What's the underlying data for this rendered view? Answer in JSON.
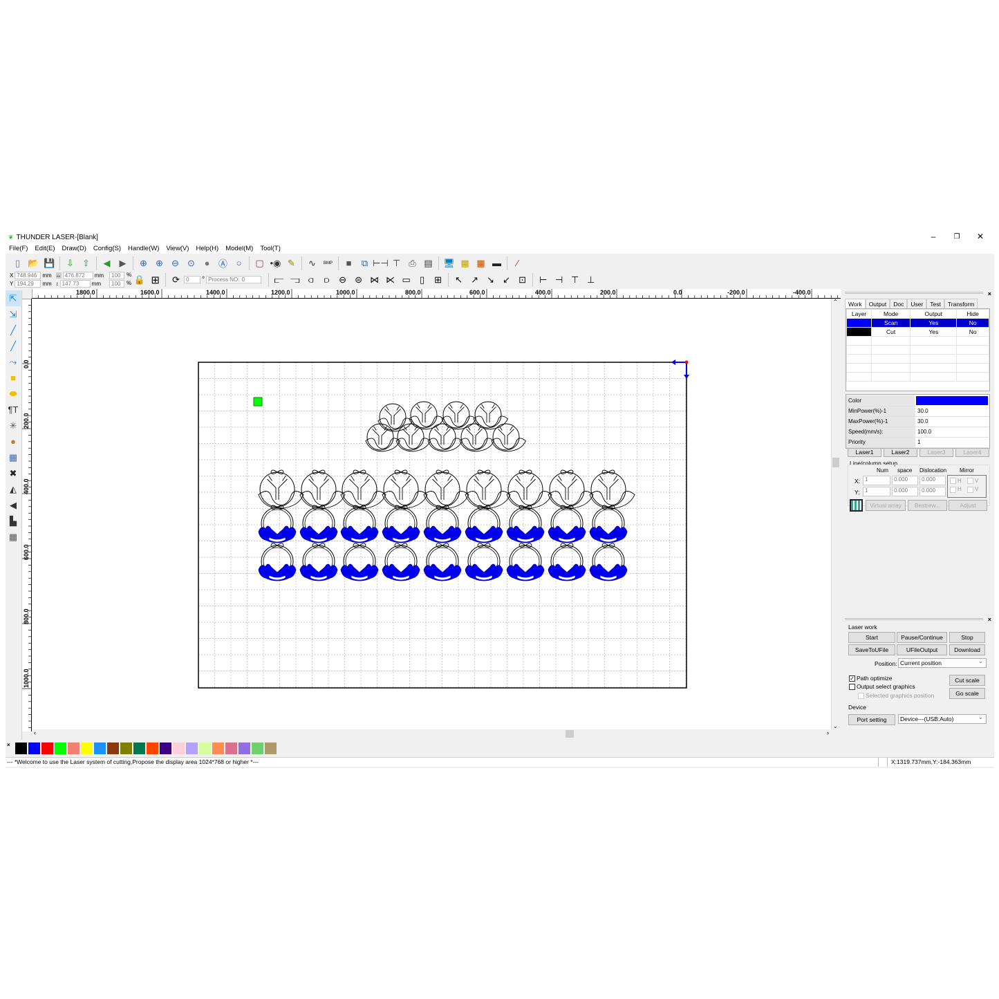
{
  "window": {
    "title": "THUNDER LASER-[Blank]",
    "minimize": "–",
    "restore": "❐",
    "close": "✕"
  },
  "menu": [
    "File(F)",
    "Edit(E)",
    "Draw(D)",
    "Config(S)",
    "Handle(W)",
    "View(V)",
    "Help(H)",
    "Model(M)",
    "Tool(T)"
  ],
  "toolbar1": [
    "new-file",
    "open-folder",
    "save",
    "import",
    "export",
    "undo",
    "redo",
    "zoom-in",
    "zoom-in-2",
    "zoom-out",
    "zoom-fit",
    "zoom-page",
    "zoom-select",
    "zoom-all",
    "rectangle",
    "node",
    "pen",
    "curve",
    "bmp",
    "square",
    "tree",
    "align-h",
    "align-v",
    "printer",
    "frame",
    "monitor",
    "laser-grid",
    "laser-grid-2",
    "camera",
    "magic-wand"
  ],
  "toolbar1_bmp": "BMP",
  "position": {
    "x_label": "X",
    "y_label": "Y",
    "x": "748.946",
    "y": "194.29",
    "unit": "mm",
    "width": "476.872",
    "height": "147.73",
    "scale_x": "100",
    "scale_y": "100",
    "pct": "%",
    "rotate": "0",
    "deg": "°",
    "process_label": "Process NO:",
    "process_no": "0"
  },
  "ruler_top": [
    "1800.0",
    "1600.0",
    "1400.0",
    "1200.0",
    "1000.0",
    "800.0",
    "600.0",
    "400.0",
    "200.0",
    "0.0",
    "-200.0",
    "-400.0"
  ],
  "ruler_left": [
    "0.0",
    "200.0",
    "400.0",
    "600.0",
    "800.0",
    "1000.0"
  ],
  "panel": {
    "tabs": [
      "Work",
      "Output",
      "Doc",
      "User",
      "Test",
      "Transform"
    ],
    "layer_headers": [
      "Layer",
      "Mode",
      "Output",
      "Hide"
    ],
    "layers": [
      {
        "color": "#0000ff",
        "mode": "Scan",
        "output": "Yes",
        "hide": "No",
        "selected": true
      },
      {
        "color": "#000000",
        "mode": "Cut",
        "output": "Yes",
        "hide": "No",
        "selected": false
      }
    ],
    "props": [
      {
        "k": "Color",
        "v": ""
      },
      {
        "k": "MinPower(%)-1",
        "v": "30.0"
      },
      {
        "k": "MaxPower(%)-1",
        "v": "30.0"
      },
      {
        "k": "Speed(mm/s):",
        "v": "100.0"
      },
      {
        "k": "Priority",
        "v": "1"
      }
    ],
    "prop_color": "#0000ff",
    "lasers": [
      "Laser1",
      "Laser2",
      "Laser3",
      "Laser4"
    ],
    "array": {
      "title": "Line/column setup",
      "num": "Num",
      "space": "space",
      "dislocation": "Dislocation",
      "mirror": "Mirror",
      "x": "X:",
      "y": "Y:",
      "x_num": "1",
      "y_num": "1",
      "x_space": "0.000",
      "y_space": "0.000",
      "x_dis": "0.000",
      "y_dis": "0.000",
      "h": "H",
      "v": "V",
      "virtual": "Virtual array",
      "bestrew": "Bestrew...",
      "adjust": "Adjust"
    },
    "laser_work": {
      "title": "Laser work",
      "start": "Start",
      "pause": "Pause/Continue",
      "stop": "Stop",
      "save": "SaveToUFile",
      "ufile": "UFileOutput",
      "download": "Download",
      "position_label": "Position:",
      "position": "Current position",
      "path_opt": "Path optimize",
      "output_sel": "Output select graphics",
      "sel_pos": "Selected graphics position",
      "cut_scale": "Cut scale",
      "go_scale": "Go scale"
    },
    "device": {
      "title": "Device",
      "port": "Port setting",
      "device": "Device---(USB:Auto)"
    }
  },
  "palette": [
    "#000000",
    "#0000ff",
    "#ff0000",
    "#00ff00",
    "#f08070",
    "#ffff00",
    "#1e90ff",
    "#8b3a0f",
    "#808000",
    "#007850",
    "#ff4500",
    "#3c0082",
    "#ffd0dc",
    "#b4a0ff",
    "#d4ff9c",
    "#ff8c50",
    "#d87090",
    "#9070e0",
    "#70d070",
    "#b09a6c"
  ],
  "status": {
    "message": "--- *Welcome to use the Laser system of cutting,Propose the display area 1024*768 or higher *---",
    "coords": "X:1319.737mm,Y:-184.363mm"
  }
}
